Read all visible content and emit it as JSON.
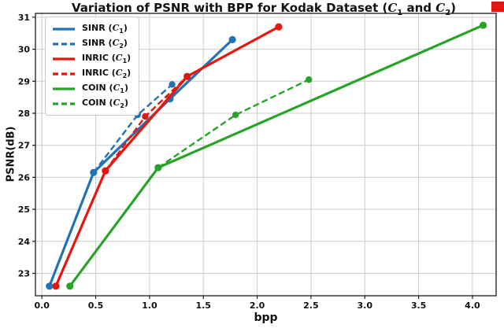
{
  "figure": {
    "background": "#ffffff",
    "corner_marker_color": "#e8150d",
    "grid_color": "#cccccc",
    "spine_color": "#1a1a1a"
  },
  "chart_data": {
    "type": "line",
    "title": "Variation of PSNR with BPP for Kodak Dataset (C₁ and C₂)",
    "xlabel": "bpp",
    "ylabel": "PSNR(dB)",
    "xlim": [
      -0.06,
      4.22
    ],
    "ylim": [
      22.3,
      31.12
    ],
    "xticks": [
      0.0,
      0.5,
      1.0,
      1.5,
      2.0,
      2.5,
      3.0,
      3.5,
      4.0
    ],
    "xtick_labels": [
      "0.0",
      "0.5",
      "1.0",
      "1.5",
      "2.0",
      "2.5",
      "3.0",
      "3.5",
      "4.0"
    ],
    "yticks": [
      23,
      24,
      25,
      26,
      27,
      28,
      29,
      30,
      31
    ],
    "ytick_labels": [
      "23",
      "24",
      "25",
      "26",
      "27",
      "28",
      "29",
      "30",
      "31"
    ],
    "grid": true,
    "legend_position": "upper left",
    "series": [
      {
        "id": "sinr-c1",
        "name": "SINR (C₁)",
        "color": "#2273b5",
        "style": "solid",
        "points": [
          [
            0.07,
            22.6
          ],
          [
            0.48,
            26.15
          ],
          [
            1.19,
            28.45
          ],
          [
            1.77,
            30.3
          ]
        ]
      },
      {
        "id": "sinr-c2",
        "name": "SINR (C₂)",
        "color": "#2273b5",
        "style": "dashed",
        "points": [
          [
            0.48,
            26.15
          ],
          [
            0.89,
            27.95
          ],
          [
            1.21,
            28.9
          ]
        ]
      },
      {
        "id": "inric-c1",
        "name": "INRIC (C₁)",
        "color": "#e8150d",
        "style": "solid",
        "points": [
          [
            0.13,
            22.6
          ],
          [
            0.59,
            26.2
          ],
          [
            1.35,
            29.15
          ],
          [
            2.2,
            30.7
          ]
        ]
      },
      {
        "id": "inric-c2",
        "name": "INRIC (C₂)",
        "color": "#e8150d",
        "style": "dashed",
        "points": [
          [
            0.59,
            26.2
          ],
          [
            0.96,
            27.9
          ],
          [
            1.35,
            29.15
          ]
        ]
      },
      {
        "id": "coin-c1",
        "name": "COIN (C₁)",
        "color": "#27a327",
        "style": "solid",
        "points": [
          [
            0.26,
            22.6
          ],
          [
            1.08,
            26.3
          ],
          [
            4.1,
            30.75
          ]
        ]
      },
      {
        "id": "coin-c2",
        "name": "COIN (C₂)",
        "color": "#27a327",
        "style": "dashed",
        "points": [
          [
            1.08,
            26.3
          ],
          [
            1.8,
            27.95
          ],
          [
            2.48,
            29.05
          ]
        ]
      }
    ]
  }
}
